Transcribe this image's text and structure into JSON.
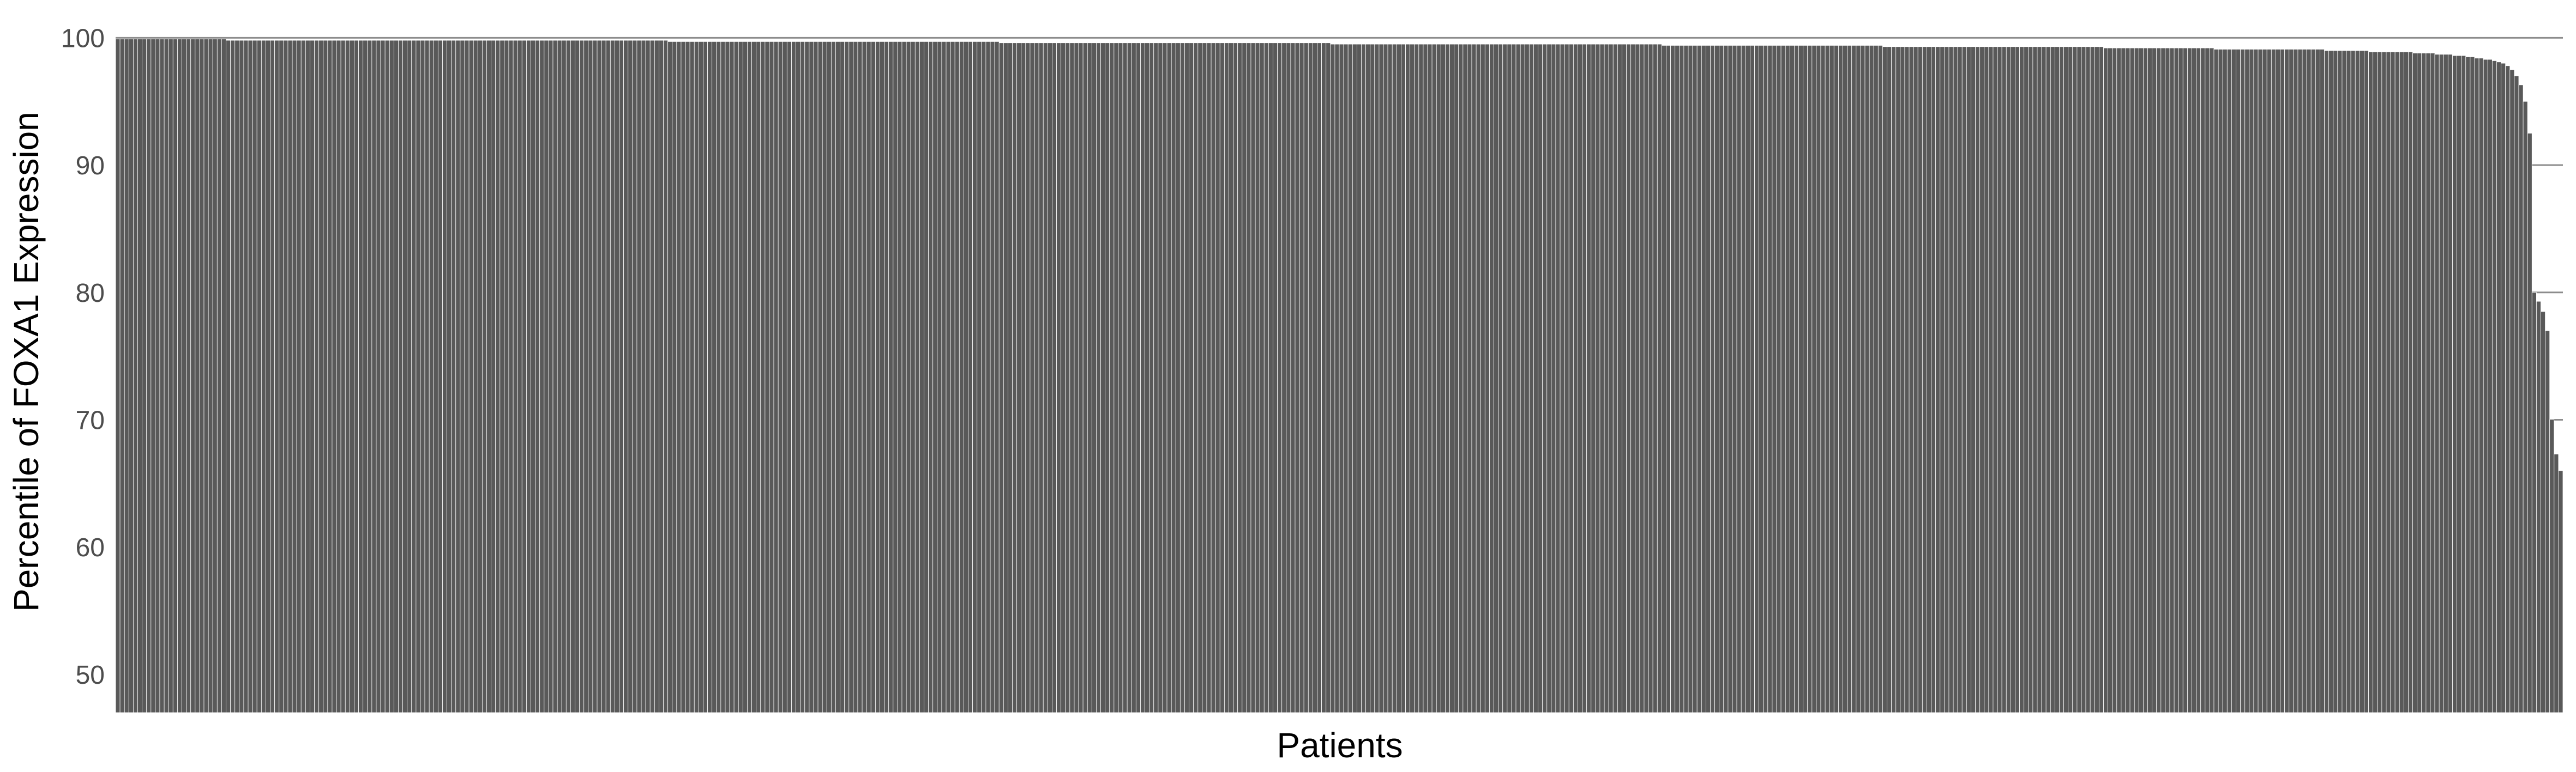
{
  "chart_data": {
    "type": "bar",
    "title": "",
    "xlabel": "Patients",
    "ylabel": "Percentile of FOXA1 Expression",
    "ylim": [
      47,
      100.4
    ],
    "yticks": [
      50,
      60,
      70,
      80,
      90,
      100
    ],
    "grid": "horizontal",
    "bar_color": "#595959",
    "series": [
      {
        "values": [
          99.9,
          99.9,
          99.9,
          99.9,
          99.9,
          99.9,
          99.9,
          99.9,
          99.9,
          99.9,
          99.9,
          99.9,
          99.9,
          99.9,
          99.9,
          99.9,
          99.9,
          99.9,
          99.9,
          99.9,
          99.9,
          99.9,
          99.9,
          99.9,
          99.9,
          99.8,
          99.8,
          99.8,
          99.8,
          99.8,
          99.8,
          99.8,
          99.8,
          99.8,
          99.8,
          99.8,
          99.8,
          99.8,
          99.8,
          99.8,
          99.8,
          99.8,
          99.8,
          99.8,
          99.8,
          99.8,
          99.8,
          99.8,
          99.8,
          99.8,
          99.8,
          99.8,
          99.8,
          99.8,
          99.8,
          99.8,
          99.8,
          99.8,
          99.8,
          99.8,
          99.8,
          99.8,
          99.8,
          99.8,
          99.8,
          99.8,
          99.8,
          99.8,
          99.8,
          99.8,
          99.8,
          99.8,
          99.8,
          99.8,
          99.8,
          99.8,
          99.8,
          99.8,
          99.8,
          99.8,
          99.8,
          99.8,
          99.8,
          99.8,
          99.8,
          99.8,
          99.8,
          99.8,
          99.8,
          99.8,
          99.8,
          99.8,
          99.8,
          99.8,
          99.8,
          99.8,
          99.8,
          99.8,
          99.8,
          99.8,
          99.8,
          99.8,
          99.8,
          99.8,
          99.8,
          99.8,
          99.8,
          99.8,
          99.8,
          99.8,
          99.8,
          99.8,
          99.8,
          99.8,
          99.8,
          99.8,
          99.8,
          99.8,
          99.8,
          99.8,
          99.8,
          99.8,
          99.8,
          99.8,
          99.8,
          99.7,
          99.7,
          99.7,
          99.7,
          99.7,
          99.7,
          99.7,
          99.7,
          99.7,
          99.7,
          99.7,
          99.7,
          99.7,
          99.7,
          99.7,
          99.7,
          99.7,
          99.7,
          99.7,
          99.7,
          99.7,
          99.7,
          99.7,
          99.7,
          99.7,
          99.7,
          99.7,
          99.7,
          99.7,
          99.7,
          99.7,
          99.7,
          99.7,
          99.7,
          99.7,
          99.7,
          99.7,
          99.7,
          99.7,
          99.7,
          99.7,
          99.7,
          99.7,
          99.7,
          99.7,
          99.7,
          99.7,
          99.7,
          99.7,
          99.7,
          99.7,
          99.7,
          99.7,
          99.7,
          99.7,
          99.7,
          99.7,
          99.7,
          99.7,
          99.7,
          99.7,
          99.7,
          99.7,
          99.7,
          99.7,
          99.7,
          99.7,
          99.7,
          99.7,
          99.7,
          99.7,
          99.7,
          99.7,
          99.7,
          99.7,
          99.6,
          99.6,
          99.6,
          99.6,
          99.6,
          99.6,
          99.6,
          99.6,
          99.6,
          99.6,
          99.6,
          99.6,
          99.6,
          99.6,
          99.6,
          99.6,
          99.6,
          99.6,
          99.6,
          99.6,
          99.6,
          99.6,
          99.6,
          99.6,
          99.6,
          99.6,
          99.6,
          99.6,
          99.6,
          99.6,
          99.6,
          99.6,
          99.6,
          99.6,
          99.6,
          99.6,
          99.6,
          99.6,
          99.6,
          99.6,
          99.6,
          99.6,
          99.6,
          99.6,
          99.6,
          99.6,
          99.6,
          99.6,
          99.6,
          99.6,
          99.6,
          99.6,
          99.6,
          99.6,
          99.6,
          99.6,
          99.6,
          99.6,
          99.6,
          99.6,
          99.6,
          99.6,
          99.6,
          99.6,
          99.6,
          99.6,
          99.6,
          99.6,
          99.6,
          99.6,
          99.6,
          99.6,
          99.6,
          99.6,
          99.6,
          99.5,
          99.5,
          99.5,
          99.5,
          99.5,
          99.5,
          99.5,
          99.5,
          99.5,
          99.5,
          99.5,
          99.5,
          99.5,
          99.5,
          99.5,
          99.5,
          99.5,
          99.5,
          99.5,
          99.5,
          99.5,
          99.5,
          99.5,
          99.5,
          99.5,
          99.5,
          99.5,
          99.5,
          99.5,
          99.5,
          99.5,
          99.5,
          99.5,
          99.5,
          99.5,
          99.5,
          99.5,
          99.5,
          99.5,
          99.5,
          99.5,
          99.5,
          99.5,
          99.5,
          99.5,
          99.5,
          99.5,
          99.5,
          99.5,
          99.5,
          99.5,
          99.5,
          99.5,
          99.5,
          99.5,
          99.5,
          99.5,
          99.5,
          99.5,
          99.5,
          99.5,
          99.5,
          99.5,
          99.5,
          99.5,
          99.5,
          99.5,
          99.5,
          99.5,
          99.5,
          99.5,
          99.5,
          99.5,
          99.5,
          99.5,
          99.4,
          99.4,
          99.4,
          99.4,
          99.4,
          99.4,
          99.4,
          99.4,
          99.4,
          99.4,
          99.4,
          99.4,
          99.4,
          99.4,
          99.4,
          99.4,
          99.4,
          99.4,
          99.4,
          99.4,
          99.4,
          99.4,
          99.4,
          99.4,
          99.4,
          99.4,
          99.4,
          99.4,
          99.4,
          99.4,
          99.4,
          99.4,
          99.4,
          99.4,
          99.4,
          99.4,
          99.4,
          99.4,
          99.4,
          99.4,
          99.4,
          99.4,
          99.4,
          99.4,
          99.4,
          99.4,
          99.4,
          99.4,
          99.4,
          99.4,
          99.3,
          99.3,
          99.3,
          99.3,
          99.3,
          99.3,
          99.3,
          99.3,
          99.3,
          99.3,
          99.3,
          99.3,
          99.3,
          99.3,
          99.3,
          99.3,
          99.3,
          99.3,
          99.3,
          99.3,
          99.3,
          99.3,
          99.3,
          99.3,
          99.3,
          99.3,
          99.3,
          99.3,
          99.3,
          99.3,
          99.3,
          99.3,
          99.3,
          99.3,
          99.3,
          99.3,
          99.3,
          99.3,
          99.3,
          99.3,
          99.3,
          99.3,
          99.3,
          99.3,
          99.3,
          99.3,
          99.3,
          99.3,
          99.3,
          99.3,
          99.2,
          99.2,
          99.2,
          99.2,
          99.2,
          99.2,
          99.2,
          99.2,
          99.2,
          99.2,
          99.2,
          99.2,
          99.2,
          99.2,
          99.2,
          99.2,
          99.2,
          99.2,
          99.2,
          99.2,
          99.2,
          99.2,
          99.2,
          99.2,
          99.2,
          99.1,
          99.1,
          99.1,
          99.1,
          99.1,
          99.1,
          99.1,
          99.1,
          99.1,
          99.1,
          99.1,
          99.1,
          99.1,
          99.1,
          99.1,
          99.1,
          99.1,
          99.1,
          99.1,
          99.1,
          99.1,
          99.1,
          99.1,
          99.1,
          99.1,
          99.0,
          99.0,
          99.0,
          99.0,
          99.0,
          99.0,
          99.0,
          99.0,
          99.0,
          99.0,
          98.9,
          98.9,
          98.9,
          98.9,
          98.9,
          98.9,
          98.9,
          98.9,
          98.9,
          98.9,
          98.8,
          98.8,
          98.8,
          98.8,
          98.8,
          98.7,
          98.7,
          98.7,
          98.7,
          98.6,
          98.6,
          98.6,
          98.5,
          98.5,
          98.4,
          98.4,
          98.3,
          98.3,
          98.2,
          98.1,
          98.0,
          97.8,
          97.5,
          97.0,
          96.3,
          95.0,
          92.5,
          80.0,
          79.3,
          78.5,
          77.0,
          70.0,
          67.3,
          66.0
        ]
      }
    ]
  }
}
